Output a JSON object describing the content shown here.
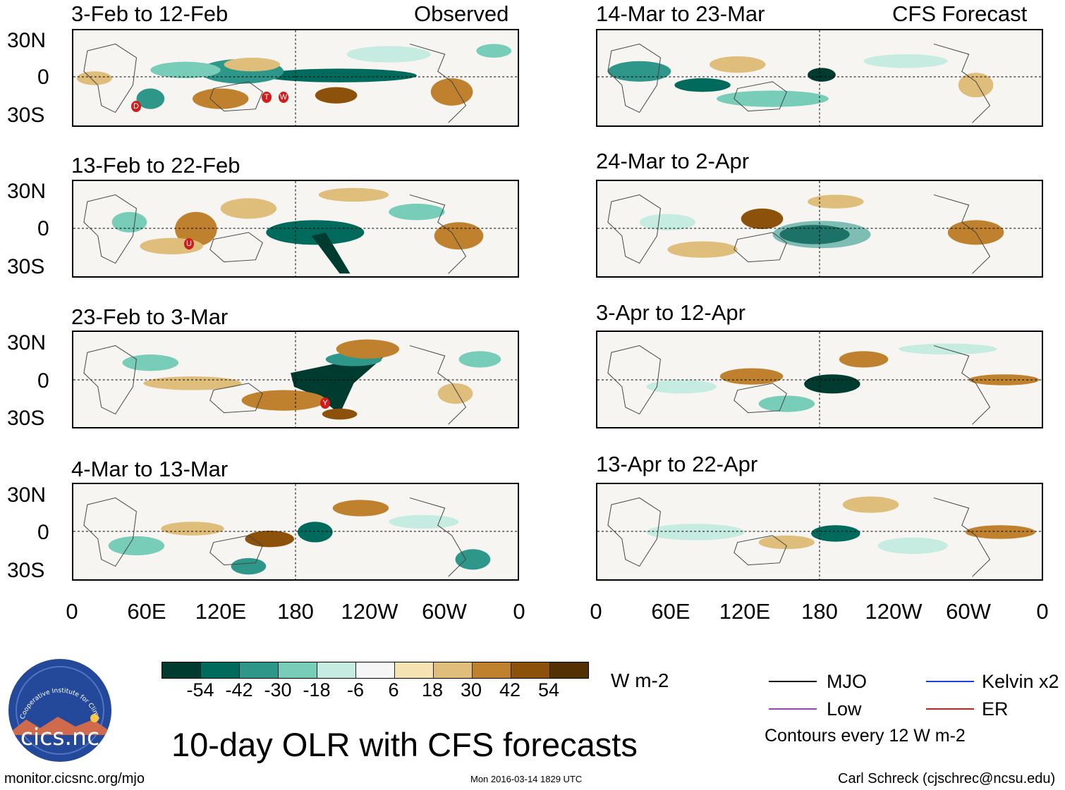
{
  "panels": {
    "left": [
      {
        "label": "3-Feb to 12-Feb",
        "tag": "Observed"
      },
      {
        "label": "13-Feb to 22-Feb",
        "tag": ""
      },
      {
        "label": "23-Feb to 3-Mar",
        "tag": ""
      },
      {
        "label": "4-Mar to 13-Mar",
        "tag": ""
      }
    ],
    "right": [
      {
        "label": "14-Mar to 23-Mar",
        "tag": "CFS Forecast"
      },
      {
        "label": "24-Mar to 2-Apr",
        "tag": ""
      },
      {
        "label": "3-Apr to 12-Apr",
        "tag": ""
      },
      {
        "label": "13-Apr to 22-Apr",
        "tag": ""
      }
    ]
  },
  "storm_markers": {
    "panel1": [
      "D",
      "T",
      "W"
    ],
    "panel2": [
      "U"
    ],
    "panel3": [
      "Y"
    ]
  },
  "axes": {
    "y_labels": [
      "30N",
      "0",
      "30S"
    ],
    "x_labels": [
      "0",
      "60E",
      "120E",
      "180",
      "120W",
      "60W",
      "0"
    ]
  },
  "colorbar": {
    "units": "W m-2",
    "ticks": [
      "-54",
      "-42",
      "-30",
      "-18",
      "-6",
      "6",
      "18",
      "30",
      "42",
      "54"
    ],
    "colors": [
      "#003b30",
      "#006a5c",
      "#2f978a",
      "#78cdb8",
      "#c6ebe0",
      "#f5f5f5",
      "#f5e3b4",
      "#dfbd7a",
      "#bf812d",
      "#8c510a",
      "#543005"
    ]
  },
  "title": "10-day OLR with CFS forecasts",
  "legend": {
    "items": [
      {
        "label": "MJO",
        "color": "#000000"
      },
      {
        "label": "Kelvin x2",
        "color": "#1f3fd6"
      },
      {
        "label": "Low",
        "color": "#9b3fd0"
      },
      {
        "label": "ER",
        "color": "#d01c1c"
      }
    ],
    "note": "Contours every 12 W m-2"
  },
  "logo": {
    "text": "cics.nc",
    "arc_text": "Cooperative Institute for Climate and Satellites"
  },
  "footer": {
    "url": "monitor.cicsnc.org/mjo",
    "timestamp": "Mon 2016-03-14 1829 UTC",
    "author": "Carl Schreck (cjschrec@ncsu.edu)"
  }
}
